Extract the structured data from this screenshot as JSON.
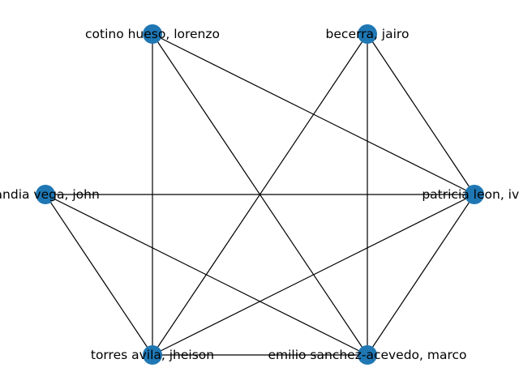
{
  "graph": {
    "node_color": "#1f77b4",
    "edge_color": "#000000",
    "nodes": [
      {
        "id": "lorenzo",
        "label": "cotino hueso, lorenzo"
      },
      {
        "id": "jairo",
        "label": "becerra, jairo"
      },
      {
        "id": "john",
        "label": "landia vega, john"
      },
      {
        "id": "ivo",
        "label": "patricia leon, ivo"
      },
      {
        "id": "jheison",
        "label": "torres avila, jheison"
      },
      {
        "id": "marco",
        "label": "emilio sanchez-acevedo, marco"
      }
    ],
    "edges": [
      [
        "lorenzo",
        "jheison"
      ],
      [
        "lorenzo",
        "ivo"
      ],
      [
        "lorenzo",
        "marco"
      ],
      [
        "jairo",
        "jheison"
      ],
      [
        "jairo",
        "ivo"
      ],
      [
        "jairo",
        "marco"
      ],
      [
        "john",
        "ivo"
      ],
      [
        "john",
        "jheison"
      ],
      [
        "john",
        "marco"
      ],
      [
        "ivo",
        "jheison"
      ],
      [
        "ivo",
        "marco"
      ],
      [
        "jheison",
        "marco"
      ]
    ]
  }
}
